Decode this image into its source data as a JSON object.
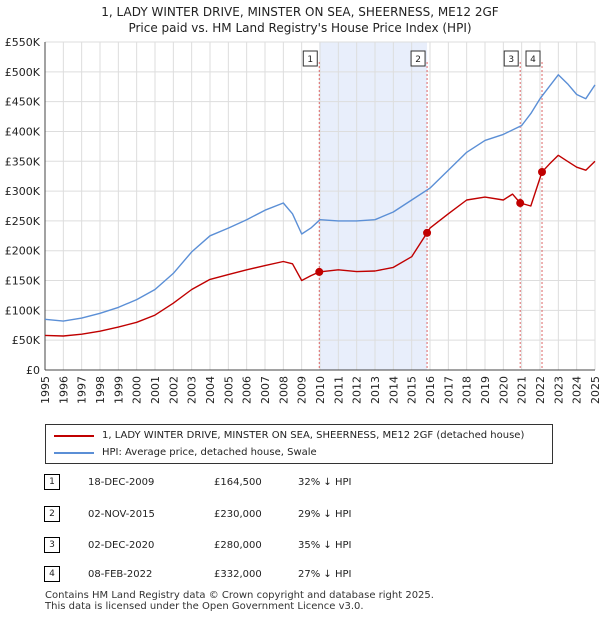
{
  "title_line1": "1, LADY WINTER DRIVE, MINSTER ON SEA, SHEERNESS, ME12 2GF",
  "title_line2": "Price paid vs. HM Land Registry's House Price Index (HPI)",
  "legend": {
    "property_label": "1, LADY WINTER DRIVE, MINSTER ON SEA, SHEERNESS, ME12 2GF (detached house)",
    "hpi_label": "HPI: Average price, detached house, Swale"
  },
  "colors": {
    "property": "#c00000",
    "hpi": "#5b8fd6",
    "shade": "#e8eefb",
    "marker_line": "#dd6666"
  },
  "transactions": [
    {
      "num": "1",
      "date": "18-DEC-2009",
      "price": "£164,500",
      "hpi_diff": "32% ↓ HPI"
    },
    {
      "num": "2",
      "date": "02-NOV-2015",
      "price": "£230,000",
      "hpi_diff": "29% ↓ HPI"
    },
    {
      "num": "3",
      "date": "02-DEC-2020",
      "price": "£280,000",
      "hpi_diff": "35% ↓ HPI"
    },
    {
      "num": "4",
      "date": "08-FEB-2022",
      "price": "£332,000",
      "hpi_diff": "27% ↓ HPI"
    }
  ],
  "footer_line1": "Contains HM Land Registry data © Crown copyright and database right 2025.",
  "footer_line2": "This data is licensed under the Open Government Licence v3.0.",
  "chart_data": {
    "type": "line",
    "xlim": [
      1995,
      2025
    ],
    "ylim": [
      0,
      550000
    ],
    "y_ticks": [
      0,
      50000,
      100000,
      150000,
      200000,
      250000,
      300000,
      350000,
      400000,
      450000,
      500000,
      550000
    ],
    "y_tick_labels": [
      "£0",
      "£50K",
      "£100K",
      "£150K",
      "£200K",
      "£250K",
      "£300K",
      "£350K",
      "£400K",
      "£450K",
      "£500K",
      "£550K"
    ],
    "x_ticks": [
      1995,
      1996,
      1997,
      1998,
      1999,
      2000,
      2001,
      2002,
      2003,
      2004,
      2005,
      2006,
      2007,
      2008,
      2009,
      2010,
      2011,
      2012,
      2013,
      2014,
      2015,
      2016,
      2017,
      2018,
      2019,
      2020,
      2021,
      2022,
      2023,
      2024,
      2025
    ],
    "x_tick_labels": [
      "1995",
      "1996",
      "1997",
      "1998",
      "1999",
      "2000",
      "2001",
      "2002",
      "2003",
      "2004",
      "2005",
      "2006",
      "2007",
      "2008",
      "2009",
      "2010",
      "2011",
      "2012",
      "2013",
      "2014",
      "2015",
      "2016",
      "2017",
      "2018",
      "2019",
      "2020",
      "2021",
      "2022",
      "2023",
      "2024",
      "2025"
    ],
    "shaded_range": [
      2009.96,
      2015.84
    ],
    "sales": [
      {
        "label": "1",
        "x": 2009.96,
        "y": 164500
      },
      {
        "label": "2",
        "x": 2015.84,
        "y": 230000
      },
      {
        "label": "3",
        "x": 2020.92,
        "y": 280000
      },
      {
        "label": "4",
        "x": 2022.11,
        "y": 332000
      }
    ],
    "series": [
      {
        "name": "HPI: Average price, detached house, Swale",
        "x": [
          1995,
          1996,
          1997,
          1998,
          1999,
          2000,
          2001,
          2002,
          2003,
          2004,
          2005,
          2006,
          2007,
          2008,
          2008.5,
          2009,
          2009.5,
          2010,
          2011,
          2012,
          2013,
          2014,
          2015,
          2016,
          2017,
          2018,
          2019,
          2020,
          2021,
          2021.5,
          2022,
          2022.5,
          2023,
          2023.5,
          2024,
          2024.5,
          2025
        ],
        "y": [
          85000,
          82000,
          87000,
          95000,
          105000,
          118000,
          135000,
          162000,
          198000,
          225000,
          238000,
          252000,
          268000,
          280000,
          262000,
          228000,
          238000,
          252000,
          250000,
          250000,
          252000,
          265000,
          285000,
          305000,
          335000,
          365000,
          385000,
          395000,
          410000,
          430000,
          455000,
          475000,
          495000,
          480000,
          462000,
          455000,
          478000
        ]
      },
      {
        "name": "1, LADY WINTER DRIVE, MINSTER ON SEA, SHEERNESS, ME12 2GF (detached house)",
        "x": [
          1995,
          1996,
          1997,
          1998,
          1999,
          2000,
          2001,
          2002,
          2003,
          2004,
          2005,
          2006,
          2007,
          2008,
          2008.5,
          2009,
          2009.5,
          2009.96,
          2011,
          2012,
          2013,
          2014,
          2015,
          2015.84,
          2016,
          2017,
          2018,
          2019,
          2020,
          2020.5,
          2020.92,
          2021.5,
          2022.11,
          2022.5,
          2023,
          2023.5,
          2024,
          2024.5,
          2025
        ],
        "y": [
          58000,
          57000,
          60000,
          65000,
          72000,
          80000,
          92000,
          112000,
          135000,
          152000,
          160000,
          168000,
          175000,
          182000,
          178000,
          150000,
          158000,
          164500,
          168000,
          165000,
          166000,
          172000,
          190000,
          230000,
          238000,
          262000,
          285000,
          290000,
          285000,
          295000,
          280000,
          275000,
          332000,
          345000,
          360000,
          350000,
          340000,
          335000,
          350000
        ]
      }
    ]
  }
}
